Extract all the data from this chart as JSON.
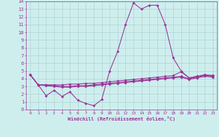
{
  "xlabel": "Windchill (Refroidissement éolien,°C)",
  "bg_color": "#ceeeed",
  "grid_color": "#aad4d3",
  "line_color": "#993399",
  "xlim": [
    -0.5,
    23.5
  ],
  "ylim": [
    0,
    14
  ],
  "xticks": [
    0,
    1,
    2,
    3,
    4,
    5,
    6,
    7,
    8,
    9,
    10,
    11,
    12,
    13,
    14,
    15,
    16,
    17,
    18,
    19,
    20,
    21,
    22,
    23
  ],
  "yticks": [
    0,
    1,
    2,
    3,
    4,
    5,
    6,
    7,
    8,
    9,
    10,
    11,
    12,
    13,
    14
  ],
  "line1_x": [
    0,
    1,
    2,
    3,
    4,
    5,
    6,
    7,
    8,
    9,
    10,
    11,
    12,
    13,
    14,
    15,
    16,
    17,
    18,
    19,
    20,
    21,
    22,
    23
  ],
  "line1_y": [
    4.5,
    3.2,
    1.8,
    2.5,
    1.7,
    2.3,
    1.2,
    0.8,
    0.5,
    1.3,
    5.0,
    7.5,
    11.0,
    13.8,
    13.0,
    13.5,
    13.5,
    11.0,
    6.7,
    5.0,
    4.1,
    4.3,
    4.5,
    4.4
  ],
  "line2_x": [
    0,
    1,
    2,
    3,
    4,
    5,
    6,
    7,
    8,
    9,
    10,
    11,
    12,
    13,
    14,
    15,
    16,
    17,
    18,
    19,
    20,
    21,
    22,
    23
  ],
  "line2_y": [
    4.5,
    3.2,
    3.2,
    3.2,
    3.2,
    3.3,
    3.3,
    3.4,
    3.4,
    3.5,
    3.6,
    3.7,
    3.8,
    3.9,
    4.0,
    4.1,
    4.2,
    4.3,
    4.4,
    4.9,
    4.1,
    4.3,
    4.5,
    4.4
  ],
  "line3_x": [
    0,
    1,
    2,
    3,
    4,
    5,
    6,
    7,
    8,
    9,
    10,
    11,
    12,
    13,
    14,
    15,
    16,
    17,
    18,
    19,
    20,
    21,
    22,
    23
  ],
  "line3_y": [
    4.5,
    3.2,
    3.2,
    3.1,
    3.0,
    3.0,
    3.1,
    3.1,
    3.2,
    3.3,
    3.4,
    3.5,
    3.6,
    3.7,
    3.8,
    3.9,
    4.0,
    4.1,
    4.2,
    4.3,
    4.0,
    4.2,
    4.4,
    4.3
  ],
  "line4_x": [
    0,
    1,
    2,
    3,
    4,
    5,
    6,
    7,
    8,
    9,
    10,
    11,
    12,
    13,
    14,
    15,
    16,
    17,
    18,
    19,
    20,
    21,
    22,
    23
  ],
  "line4_y": [
    4.5,
    3.2,
    3.1,
    3.0,
    2.9,
    2.9,
    3.0,
    3.0,
    3.1,
    3.2,
    3.3,
    3.4,
    3.5,
    3.6,
    3.7,
    3.8,
    3.9,
    4.0,
    4.1,
    4.2,
    3.9,
    4.1,
    4.3,
    4.2
  ]
}
